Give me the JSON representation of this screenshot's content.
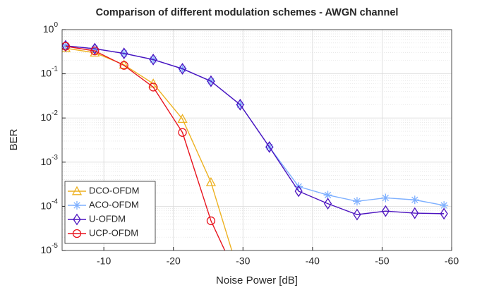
{
  "chart_data": {
    "type": "line",
    "title": "Comparison of different modulation schemes - AWGN channel",
    "xlabel": "Noise Power [dB]",
    "ylabel": "BER",
    "x": [
      -4.5,
      -8.7,
      -12.9,
      -17.1,
      -21.3,
      -25.4,
      -29.6,
      -33.8,
      -38.0,
      -42.2,
      -46.4,
      -50.5,
      -54.7,
      -58.9
    ],
    "series": [
      {
        "name": "DCO-OFDM",
        "color": "#EDB120",
        "marker": "triangle",
        "values": [
          0.38,
          0.3,
          0.16,
          0.06,
          0.0095,
          0.00035,
          2.4e-06,
          null,
          null,
          null,
          null,
          null,
          null,
          null
        ]
      },
      {
        "name": "ACO-OFDM",
        "color": "#7EB0FF",
        "marker": "asterisk",
        "values": [
          0.43,
          0.37,
          0.29,
          0.21,
          0.13,
          0.068,
          0.02,
          0.0022,
          0.00028,
          0.00018,
          0.00013,
          0.000155,
          0.00014,
          0.000105
        ]
      },
      {
        "name": "U-OFDM",
        "color": "#4B12BF",
        "marker": "diamond",
        "values": [
          0.43,
          0.37,
          0.29,
          0.21,
          0.13,
          0.068,
          0.02,
          0.0022,
          0.00022,
          0.000115,
          6.5e-05,
          7.8e-05,
          7e-05,
          6.8e-05
        ]
      },
      {
        "name": "UCP-OFDM",
        "color": "#E8141E",
        "marker": "circle",
        "values": [
          0.42,
          0.33,
          0.155,
          0.05,
          0.0047,
          4.7e-05,
          1.8e-06,
          null,
          null,
          null,
          null,
          null,
          null,
          null
        ]
      }
    ],
    "xlim": [
      -4,
      -60
    ],
    "xticks": [
      -10,
      -20,
      -30,
      -40,
      -50,
      -60
    ],
    "ylim": [
      1e-05,
      1
    ],
    "ylog": true,
    "yticks": [
      {
        "value": 1e-05,
        "label": "10^-5"
      },
      {
        "value": 0.0001,
        "label": "10^-4"
      },
      {
        "value": 0.001,
        "label": "10^-3"
      },
      {
        "value": 0.01,
        "label": "10^-2"
      },
      {
        "value": 0.1,
        "label": "10^-1"
      },
      {
        "value": 1,
        "label": "10^0"
      }
    ],
    "grid": true,
    "legend": "lower left"
  }
}
